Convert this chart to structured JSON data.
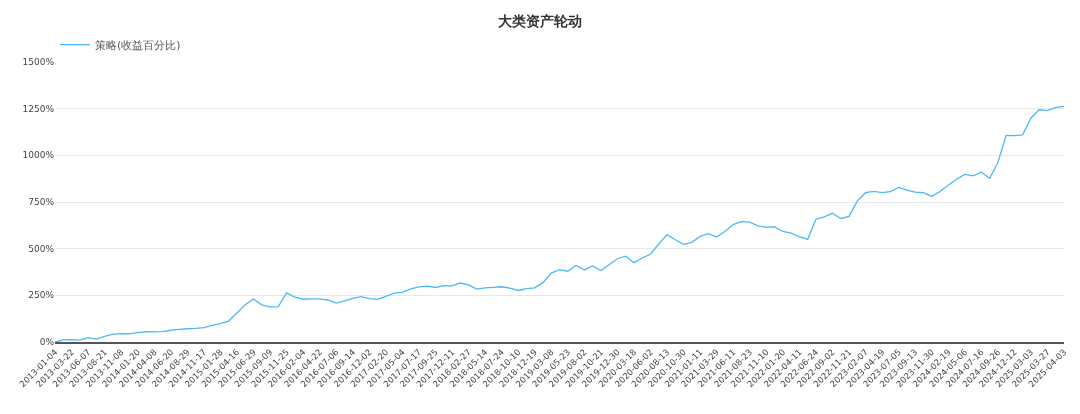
{
  "chart_data": {
    "type": "line",
    "title": "大类资产轮动",
    "categories": [
      "2013-01-04",
      null,
      "2013-03-22",
      null,
      "2013-06-07",
      null,
      "2013-08-21",
      null,
      "2013-11-08",
      null,
      "2014-01-20",
      null,
      "2014-04-08",
      null,
      "2014-06-20",
      null,
      "2014-08-29",
      null,
      "2014-11-17",
      null,
      "2015-01-28",
      null,
      "2015-04-16",
      null,
      "2015-06-29",
      null,
      "2015-09-09",
      null,
      "2015-11-25",
      null,
      "2016-02-04",
      null,
      "2016-04-22",
      null,
      "2016-07-06",
      null,
      "2016-09-14",
      null,
      "2016-12-02",
      null,
      "2017-02-20",
      null,
      "2017-05-04",
      null,
      "2017-07-17",
      null,
      "2017-09-25",
      null,
      "2017-12-11",
      null,
      "2018-02-27",
      null,
      "2018-05-14",
      null,
      "2018-07-24",
      null,
      "2018-10-10",
      null,
      "2018-12-19",
      null,
      "2019-03-08",
      null,
      "2019-05-23",
      null,
      "2019-08-02",
      null,
      "2019-10-21",
      null,
      "2019-12-30",
      null,
      "2020-03-18",
      null,
      "2020-06-02",
      null,
      "2020-08-13",
      null,
      "2020-10-30",
      null,
      "2021-01-11",
      null,
      "2021-03-29",
      null,
      "2021-06-11",
      null,
      "2021-08-23",
      null,
      "2021-11-10",
      null,
      "2022-01-20",
      null,
      "2022-04-11",
      null,
      "2022-06-24",
      null,
      "2022-09-02",
      null,
      "2022-11-21",
      null,
      "2023-02-07",
      null,
      "2023-04-19",
      null,
      "2023-07-05",
      null,
      "2023-09-13",
      null,
      "2023-11-30",
      null,
      "2024-02-19",
      null,
      "2024-05-06",
      null,
      "2024-07-16",
      null,
      "2024-09-26",
      null,
      "2024-12-12",
      null,
      "2025-03-03",
      null,
      "2025-03-27",
      null,
      "2025-04-03"
    ],
    "series": [
      {
        "name": "策略(收益百分比)",
        "color": "#4db8f8",
        "values": [
          0,
          11,
          13,
          10,
          23,
          15,
          30,
          42,
          45,
          43,
          50,
          55,
          54,
          56,
          63,
          68,
          71,
          73,
          77,
          89,
          98,
          112,
          155,
          200,
          230,
          199,
          188,
          190,
          263,
          240,
          229,
          231,
          231,
          225,
          208,
          220,
          234,
          243,
          232,
          228,
          245,
          262,
          266,
          284,
          295,
          299,
          292,
          302,
          301,
          316,
          306,
          283,
          290,
          293,
          296,
          289,
          276,
          286,
          290,
          318,
          369,
          388,
          379,
          410,
          386,
          407,
          383,
          414,
          446,
          460,
          425,
          450,
          470,
          525,
          575,
          548,
          523,
          534,
          566,
          580,
          562,
          592,
          629,
          645,
          642,
          622,
          615,
          617,
          592,
          583,
          565,
          550,
          658,
          670,
          690,
          662,
          673,
          755,
          800,
          807,
          800,
          805,
          828,
          813,
          803,
          800,
          780,
          806,
          840,
          872,
          898,
          890,
          910,
          877,
          960,
          1107,
          1106,
          1110,
          1200,
          1244,
          1240,
          1257,
          1262
        ]
      }
    ],
    "ylim": [
      0,
      1500
    ],
    "yticks": [
      {
        "value": 0,
        "label": "0%"
      },
      {
        "value": 250,
        "label": "250%"
      },
      {
        "value": 500,
        "label": "500%"
      },
      {
        "value": 750,
        "label": "750%"
      },
      {
        "value": 1000,
        "label": "1000%"
      },
      {
        "value": 1250,
        "label": "1250%"
      },
      {
        "value": 1500,
        "label": "1500%"
      }
    ],
    "grid": "y",
    "legend": "top left",
    "marker": "none",
    "line_style": "solid"
  }
}
